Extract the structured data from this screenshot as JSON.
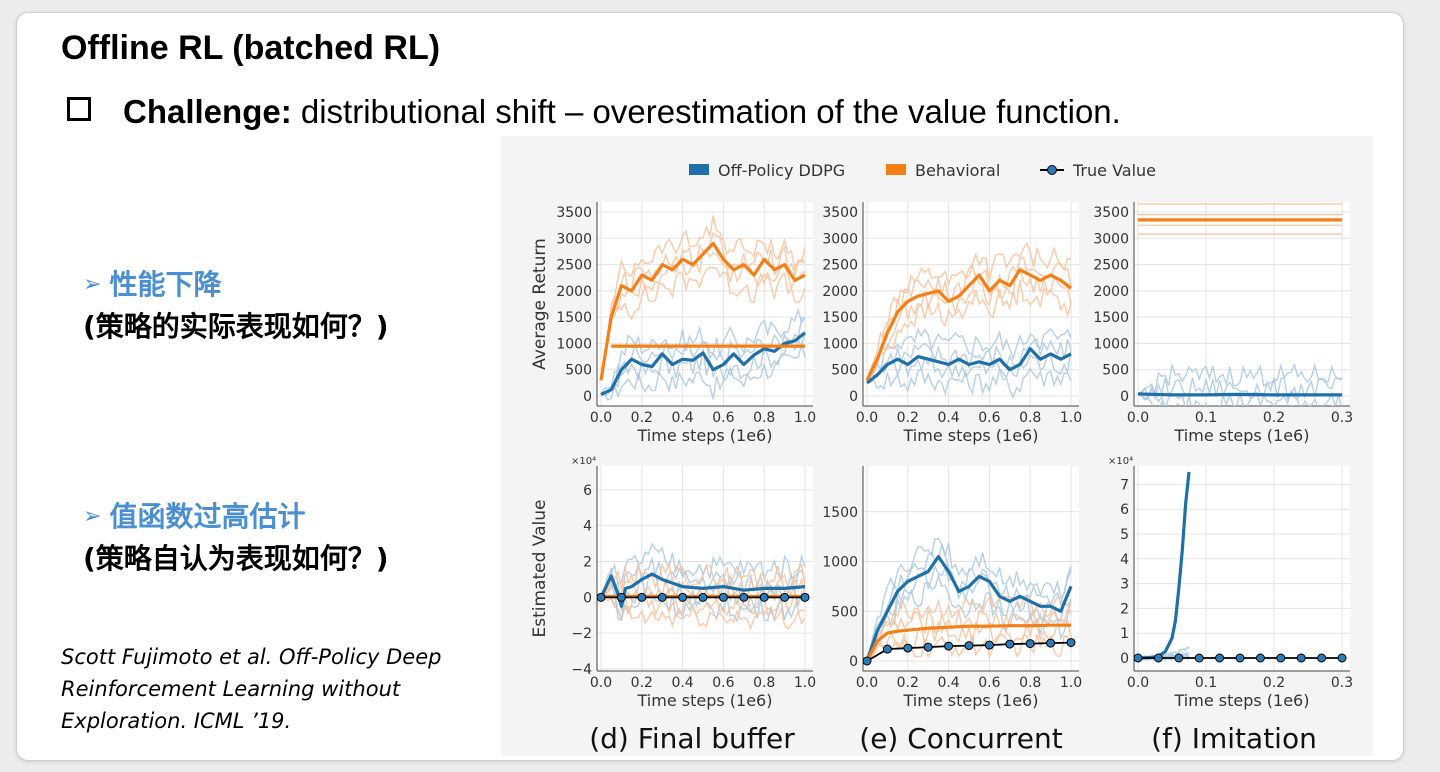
{
  "title": "Offline RL (batched RL)",
  "challenge": {
    "label": "Challenge:",
    "text": " distributional shift – overestimation of the value function."
  },
  "bullets": [
    {
      "heading": "性能下降",
      "sub": "(策略的实际表现如何？)"
    },
    {
      "heading": "值函数过高估计",
      "sub": "(策略自认为表现如何？)"
    }
  ],
  "citation": "Scott Fujimoto et al. Off-Policy Deep Reinforcement Learning without Exploration. ICML ’19.",
  "colors": {
    "ddpg": "#1f6fa8",
    "ddpg_light": "#a9c8e0",
    "behavioral": "#f57f17",
    "behavioral_light": "#f9c09a",
    "true_value": "#000000",
    "marker": "#2b7bb9"
  },
  "chart_data": {
    "legend": [
      {
        "name": "Off-Policy DDPG",
        "marker": "box",
        "color": "#1f6fa8"
      },
      {
        "name": "Behavioral",
        "marker": "box",
        "color": "#f57f17"
      },
      {
        "name": "True Value",
        "marker": "line-dot",
        "color": "#000000"
      }
    ],
    "captions": [
      "(d) Final buffer",
      "(e) Concurrent",
      "(f) Imitation"
    ],
    "panels": [
      {
        "id": "d-return",
        "type": "line",
        "ylabel": "Average Return",
        "xlabel": "Time steps (1e6)",
        "xlim": [
          0,
          1.0
        ],
        "ylim": [
          0,
          3500
        ],
        "xticks": [
          "0.0",
          "0.2",
          "0.4",
          "0.6",
          "0.8",
          "1.0"
        ],
        "yticks": [
          "0",
          "500",
          "1000",
          "1500",
          "2000",
          "2500",
          "3000",
          "3500"
        ],
        "series": [
          {
            "name": "Off-Policy DDPG",
            "x": [
              0,
              0.05,
              0.1,
              0.15,
              0.2,
              0.25,
              0.3,
              0.35,
              0.4,
              0.45,
              0.5,
              0.55,
              0.6,
              0.65,
              0.7,
              0.75,
              0.8,
              0.85,
              0.9,
              0.95,
              1.0
            ],
            "y": [
              30,
              120,
              500,
              700,
              600,
              560,
              800,
              600,
              700,
              680,
              820,
              500,
              600,
              800,
              600,
              780,
              900,
              850,
              1000,
              1050,
              1200
            ]
          },
          {
            "name": "Behavioral",
            "x": [
              0,
              0.05,
              0.1,
              0.15,
              0.2,
              0.25,
              0.3,
              0.35,
              0.4,
              0.45,
              0.5,
              0.55,
              0.6,
              0.65,
              0.7,
              0.75,
              0.8,
              0.85,
              0.9,
              0.95,
              1.0
            ],
            "y": [
              300,
              1500,
              2100,
              2000,
              2300,
              2200,
              2500,
              2400,
              2600,
              2500,
              2700,
              2900,
              2600,
              2400,
              2500,
              2300,
              2600,
              2400,
              2500,
              2200,
              2300
            ]
          },
          {
            "name": "Behavioral (final)",
            "x": [
              0.05,
              1.0
            ],
            "y": [
              950,
              950
            ]
          }
        ]
      },
      {
        "id": "e-return",
        "type": "line",
        "ylabel": "",
        "xlabel": "Time steps (1e6)",
        "xlim": [
          0,
          1.0
        ],
        "ylim": [
          0,
          3500
        ],
        "xticks": [
          "0.0",
          "0.2",
          "0.4",
          "0.6",
          "0.8",
          "1.0"
        ],
        "yticks": [
          "0",
          "500",
          "1000",
          "1500",
          "2000",
          "2500",
          "3000",
          "3500"
        ],
        "series": [
          {
            "name": "Off-Policy DDPG",
            "x": [
              0,
              0.05,
              0.1,
              0.15,
              0.2,
              0.25,
              0.3,
              0.35,
              0.4,
              0.45,
              0.5,
              0.55,
              0.6,
              0.65,
              0.7,
              0.75,
              0.8,
              0.85,
              0.9,
              0.95,
              1.0
            ],
            "y": [
              250,
              400,
              600,
              700,
              600,
              750,
              700,
              650,
              600,
              700,
              600,
              650,
              600,
              700,
              500,
              600,
              900,
              700,
              800,
              700,
              800
            ]
          },
          {
            "name": "Behavioral",
            "x": [
              0,
              0.05,
              0.1,
              0.15,
              0.2,
              0.25,
              0.3,
              0.35,
              0.4,
              0.45,
              0.5,
              0.55,
              0.6,
              0.65,
              0.7,
              0.75,
              0.8,
              0.85,
              0.9,
              0.95,
              1.0
            ],
            "y": [
              300,
              700,
              1200,
              1600,
              1800,
              1900,
              1950,
              2000,
              1800,
              1900,
              2100,
              2300,
              2000,
              2200,
              2100,
              2400,
              2300,
              2200,
              2300,
              2200,
              2050
            ]
          }
        ]
      },
      {
        "id": "f-return",
        "type": "line",
        "ylabel": "",
        "xlabel": "Time steps (1e6)",
        "xlim": [
          0,
          0.3
        ],
        "ylim": [
          0,
          3500
        ],
        "xticks": [
          "0.0",
          "0.1",
          "0.2",
          "0.3"
        ],
        "yticks": [
          "0",
          "500",
          "1000",
          "1500",
          "2000",
          "2500",
          "3000",
          "3500"
        ],
        "series": [
          {
            "name": "Off-Policy DDPG",
            "x": [
              0,
              0.05,
              0.1,
              0.15,
              0.2,
              0.25,
              0.3
            ],
            "y": [
              40,
              20,
              20,
              30,
              20,
              20,
              20
            ]
          },
          {
            "name": "Behavioral",
            "x": [
              0,
              0.3
            ],
            "y": [
              3350,
              3350
            ]
          }
        ]
      },
      {
        "id": "d-value",
        "type": "line",
        "ylabel": "Estimated Value",
        "xlabel": "Time steps (1e6)",
        "xlim": [
          0,
          1.0
        ],
        "ylim": [
          -4,
          7
        ],
        "scale_label": "×10⁴",
        "xticks": [
          "0.0",
          "0.2",
          "0.4",
          "0.6",
          "0.8",
          "1.0"
        ],
        "yticks": [
          "−4",
          "−2",
          "0",
          "2",
          "4",
          "6"
        ],
        "series": [
          {
            "name": "Off-Policy DDPG",
            "x": [
              0,
              0.05,
              0.08,
              0.1,
              0.12,
              0.15,
              0.2,
              0.25,
              0.3,
              0.4,
              0.5,
              0.6,
              0.7,
              0.8,
              0.9,
              1.0
            ],
            "y": [
              0,
              1.2,
              0.3,
              -0.5,
              0.5,
              0.6,
              1.0,
              1.3,
              1.0,
              0.6,
              0.5,
              0.6,
              0.4,
              0.5,
              0.5,
              0.6
            ]
          },
          {
            "name": "Behavioral",
            "x": [
              0,
              1.0
            ],
            "y": [
              0.05,
              0.05
            ]
          },
          {
            "name": "True Value",
            "x": [
              0,
              0.1,
              0.2,
              0.3,
              0.4,
              0.5,
              0.6,
              0.7,
              0.8,
              0.9,
              1.0
            ],
            "y": [
              0,
              0,
              0,
              0,
              0,
              0,
              0,
              0,
              0,
              0,
              0
            ]
          }
        ]
      },
      {
        "id": "e-value",
        "type": "line",
        "ylabel": "",
        "xlabel": "Time steps (1e6)",
        "xlim": [
          0,
          1.0
        ],
        "ylim": [
          0,
          1900
        ],
        "xticks": [
          "0.0",
          "0.2",
          "0.4",
          "0.6",
          "0.8",
          "1.0"
        ],
        "yticks": [
          "0",
          "500",
          "1000",
          "1500"
        ],
        "series": [
          {
            "name": "Off-Policy DDPG",
            "x": [
              0,
              0.05,
              0.1,
              0.15,
              0.2,
              0.25,
              0.3,
              0.35,
              0.4,
              0.45,
              0.5,
              0.55,
              0.6,
              0.65,
              0.7,
              0.75,
              0.8,
              0.85,
              0.9,
              0.95,
              1.0
            ],
            "y": [
              0,
              300,
              500,
              700,
              800,
              850,
              900,
              1050,
              900,
              700,
              750,
              850,
              800,
              650,
              600,
              650,
              600,
              550,
              550,
              500,
              750
            ]
          },
          {
            "name": "Behavioral",
            "x": [
              0,
              0.05,
              0.1,
              0.15,
              0.2,
              0.3,
              0.4,
              0.5,
              0.6,
              0.7,
              0.8,
              0.9,
              1.0
            ],
            "y": [
              0,
              200,
              280,
              300,
              310,
              330,
              340,
              350,
              350,
              355,
              355,
              360,
              360
            ]
          },
          {
            "name": "True Value",
            "x": [
              0,
              0.1,
              0.2,
              0.3,
              0.4,
              0.5,
              0.6,
              0.7,
              0.8,
              0.9,
              1.0
            ],
            "y": [
              0,
              120,
              130,
              140,
              150,
              155,
              160,
              170,
              175,
              180,
              185
            ]
          }
        ]
      },
      {
        "id": "f-value",
        "type": "line",
        "ylabel": "",
        "xlabel": "Time steps (1e6)",
        "xlim": [
          0,
          0.3
        ],
        "ylim": [
          0,
          7.5
        ],
        "scale_label": "×10⁴",
        "xticks": [
          "0.0",
          "0.1",
          "0.2",
          "0.3"
        ],
        "yticks": [
          "0",
          "1",
          "2",
          "3",
          "4",
          "5",
          "6",
          "7"
        ],
        "series": [
          {
            "name": "Off-Policy DDPG",
            "x": [
              0,
              0.02,
              0.03,
              0.04,
              0.05,
              0.055,
              0.06,
              0.065,
              0.07,
              0.075
            ],
            "y": [
              0,
              0.02,
              0.08,
              0.25,
              0.8,
              1.5,
              2.8,
              4.3,
              6.2,
              7.5
            ]
          },
          {
            "name": "True Value",
            "x": [
              0,
              0.03,
              0.06,
              0.09,
              0.12,
              0.15,
              0.18,
              0.21,
              0.24,
              0.27,
              0.3
            ],
            "y": [
              0,
              0,
              0,
              0,
              0,
              0,
              0,
              0,
              0,
              0,
              0
            ]
          }
        ]
      }
    ]
  }
}
